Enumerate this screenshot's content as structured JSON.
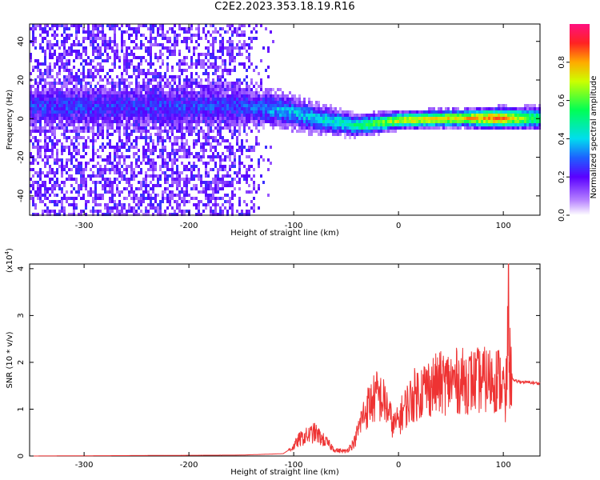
{
  "title": "C2E2.2023.353.18.19.R16",
  "chart_data": [
    {
      "type": "heatmap",
      "xlabel": "Height of straight line (km)",
      "ylabel": "Frequency (Hz)",
      "xlim": [
        -352,
        135
      ],
      "ylim": [
        -50,
        49
      ],
      "x_ticks": [
        -300,
        -200,
        -100,
        0,
        100
      ],
      "y_ticks": [
        -40,
        -20,
        0,
        20,
        40
      ],
      "colorbar": {
        "label": "Normalized spectral amplitude",
        "range": [
          0,
          1
        ],
        "ticks": [
          0.0,
          0.2,
          0.4,
          0.6,
          0.8
        ],
        "tick_labels": [
          "0.0",
          "0.2",
          "0.4",
          "0.6",
          "0.8"
        ],
        "colormap": "rainbow"
      },
      "ridge": [
        {
          "x": -160,
          "freq": 7,
          "halfwidth": 6,
          "amplitude": 0.25
        },
        {
          "x": -120,
          "freq": 6,
          "halfwidth": 5,
          "amplitude": 0.35
        },
        {
          "x": -80,
          "freq": 1,
          "halfwidth": 4,
          "amplitude": 0.4
        },
        {
          "x": -40,
          "freq": -3,
          "halfwidth": 3,
          "amplitude": 0.5
        },
        {
          "x": 0,
          "freq": 0,
          "halfwidth": 2.5,
          "amplitude": 0.7
        },
        {
          "x": 60,
          "freq": 1,
          "halfwidth": 2.5,
          "amplitude": 0.75
        },
        {
          "x": 95,
          "freq": 1,
          "halfwidth": 3,
          "amplitude": 0.85
        },
        {
          "x": 130,
          "freq": 1,
          "halfwidth": 3,
          "amplitude": 0.55
        }
      ]
    },
    {
      "type": "line",
      "xlabel": "Height of straight line (km)",
      "ylabel": "SNR (10 * v/v)",
      "y_multiplier": "(x10",
      "y_multiplier_exp": "4",
      "y_multiplier_close": ")",
      "xlim": [
        -352,
        135
      ],
      "ylim": [
        0,
        4.1
      ],
      "x_ticks": [
        -300,
        -200,
        -100,
        0,
        100
      ],
      "y_ticks": [
        0,
        1,
        2,
        3,
        4
      ],
      "line_color": "#ee3333",
      "points": [
        [
          -352,
          0.0
        ],
        [
          -150,
          0.02
        ],
        [
          -110,
          0.05
        ],
        [
          -100,
          0.2
        ],
        [
          -95,
          0.35
        ],
        [
          -85,
          0.45
        ],
        [
          -80,
          0.5
        ],
        [
          -72,
          0.35
        ],
        [
          -60,
          0.12
        ],
        [
          -50,
          0.1
        ],
        [
          -42,
          0.3
        ],
        [
          -35,
          0.8
        ],
        [
          -28,
          1.1
        ],
        [
          -20,
          1.3
        ],
        [
          -12,
          1.1
        ],
        [
          -5,
          0.65
        ],
        [
          0,
          0.75
        ],
        [
          5,
          1.0
        ],
        [
          15,
          1.3
        ],
        [
          25,
          1.45
        ],
        [
          40,
          1.55
        ],
        [
          55,
          1.6
        ],
        [
          70,
          1.6
        ],
        [
          85,
          1.62
        ],
        [
          95,
          1.65
        ],
        [
          100,
          1.5
        ],
        [
          102,
          1.0
        ],
        [
          104,
          2.2
        ],
        [
          105,
          4.1
        ],
        [
          106,
          1.9
        ],
        [
          110,
          1.6
        ],
        [
          120,
          1.58
        ],
        [
          135,
          1.55
        ]
      ]
    }
  ]
}
